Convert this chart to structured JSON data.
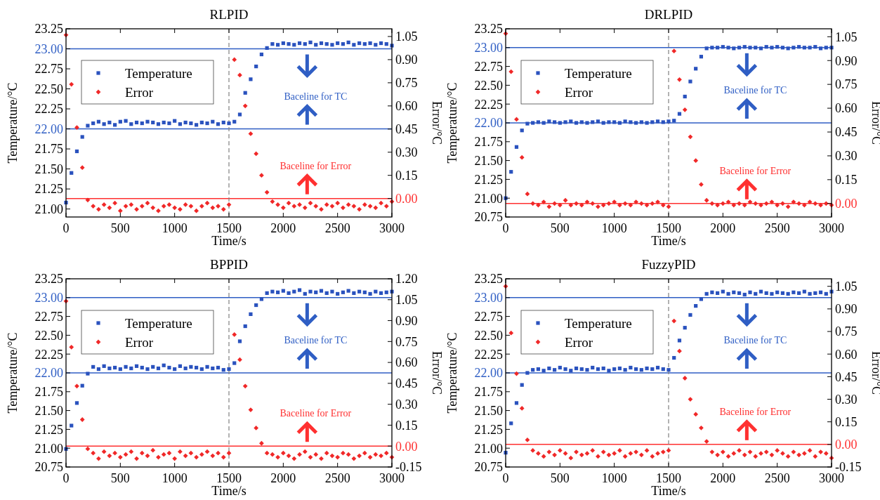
{
  "chart_data": [
    {
      "type": "scatter",
      "title": "RLPID",
      "xlabel": "Time/s",
      "ylabel": "Temperature/°C",
      "y2label": "Error/°C",
      "legend": "top left",
      "x": [
        0,
        50,
        100,
        150,
        200,
        250,
        300,
        350,
        400,
        450,
        500,
        550,
        600,
        650,
        700,
        750,
        800,
        850,
        900,
        950,
        1000,
        1050,
        1100,
        1150,
        1200,
        1250,
        1300,
        1350,
        1400,
        1450,
        1500,
        1550,
        1600,
        1650,
        1700,
        1750,
        1800,
        1850,
        1900,
        1950,
        2000,
        2050,
        2100,
        2150,
        2200,
        2250,
        2300,
        2350,
        2400,
        2450,
        2500,
        2550,
        2600,
        2650,
        2700,
        2750,
        2800,
        2850,
        2900,
        2950,
        3000
      ],
      "xlim": [
        0,
        3000
      ],
      "xticks": [
        0,
        500,
        1000,
        1500,
        2000,
        2500,
        3000
      ],
      "ylim": [
        20.9,
        23.25
      ],
      "yticks": [
        {
          "value": 21,
          "label": "21.00"
        },
        21.25,
        {
          "value": 21.5,
          "label": "21.50"
        },
        21.75,
        {
          "value": 22,
          "label": "22.00"
        },
        22.25,
        {
          "value": 22.5,
          "label": "22.50"
        },
        22.75,
        {
          "value": 23,
          "label": "23.00"
        },
        23.25
      ],
      "y2lim": [
        -0.12,
        1.1
      ],
      "y2ticks": [
        {
          "value": 0,
          "label": "0.00"
        },
        0.15,
        {
          "value": 0.3,
          "label": "0.30"
        },
        0.45,
        {
          "value": 0.6,
          "label": "0.60"
        },
        0.75,
        {
          "value": 0.9,
          "label": "0.90"
        },
        1.05
      ],
      "series": [
        {
          "name": "Temperature",
          "color": "#2a52be",
          "marker": "square",
          "values": [
            21.08,
            21.45,
            21.72,
            21.9,
            22.04,
            22.07,
            22.09,
            22.06,
            22.08,
            22.05,
            22.09,
            22.1,
            22.06,
            22.08,
            22.07,
            22.09,
            22.08,
            22.06,
            22.08,
            22.07,
            22.1,
            22.06,
            22.08,
            22.07,
            22.05,
            22.08,
            22.07,
            22.09,
            22.06,
            22.08,
            22.07,
            22.09,
            22.18,
            22.45,
            22.62,
            22.78,
            22.93,
            23.01,
            23.06,
            23.05,
            23.07,
            23.06,
            23.05,
            23.07,
            23.06,
            23.08,
            23.05,
            23.07,
            23.06,
            23.05,
            23.07,
            23.06,
            23.08,
            23.05,
            23.07,
            23.06,
            23.07,
            23.05,
            23.07,
            23.06,
            23.04
          ]
        },
        {
          "name": "Error",
          "color": "#f02828",
          "marker": "diamond",
          "axis": "y2",
          "values": [
            1.06,
            0.74,
            0.46,
            0.2,
            -0.01,
            -0.05,
            -0.07,
            -0.04,
            -0.06,
            -0.03,
            -0.08,
            -0.05,
            -0.04,
            -0.07,
            -0.05,
            -0.03,
            -0.06,
            -0.08,
            -0.05,
            -0.04,
            -0.06,
            -0.07,
            -0.04,
            -0.05,
            -0.08,
            -0.05,
            -0.03,
            -0.06,
            -0.05,
            -0.07,
            -0.04,
            0.9,
            0.8,
            0.6,
            0.42,
            0.29,
            0.15,
            0.04,
            -0.02,
            -0.04,
            -0.06,
            -0.03,
            -0.05,
            -0.04,
            -0.06,
            -0.03,
            -0.05,
            -0.07,
            -0.04,
            -0.05,
            -0.03,
            -0.06,
            -0.04,
            -0.05,
            -0.07,
            -0.04,
            -0.05,
            -0.06,
            -0.03,
            -0.05,
            -0.02
          ]
        }
      ],
      "ref_lines": [
        {
          "axis": "y",
          "value": 23,
          "color": "#2f5ec4"
        },
        {
          "axis": "y",
          "value": 22,
          "color": "#2f5ec4",
          "label": "Baceline for TC"
        },
        {
          "axis": "y2",
          "value": 0,
          "color": "#ff3030",
          "label": "Baceline for Error"
        },
        {
          "axis": "x",
          "value": 1500,
          "color": "#808080",
          "line_style": "dashed"
        }
      ]
    },
    {
      "type": "scatter",
      "title": "DRLPID",
      "xlabel": "Time/s",
      "ylabel": "Temperature/°C",
      "y2label": "Error/°C",
      "legend": "top left",
      "x": [
        0,
        50,
        100,
        150,
        200,
        250,
        300,
        350,
        400,
        450,
        500,
        550,
        600,
        650,
        700,
        750,
        800,
        850,
        900,
        950,
        1000,
        1050,
        1100,
        1150,
        1200,
        1250,
        1300,
        1350,
        1400,
        1450,
        1500,
        1550,
        1600,
        1650,
        1700,
        1750,
        1800,
        1850,
        1900,
        1950,
        2000,
        2050,
        2100,
        2150,
        2200,
        2250,
        2300,
        2350,
        2400,
        2450,
        2500,
        2550,
        2600,
        2650,
        2700,
        2750,
        2800,
        2850,
        2900,
        2950,
        3000
      ],
      "xlim": [
        0,
        3000
      ],
      "xticks": [
        0,
        500,
        1000,
        1500,
        2000,
        2500,
        3000
      ],
      "ylim": [
        20.75,
        23.25
      ],
      "yticks": [
        20.75,
        {
          "value": 21,
          "label": "21.00"
        },
        21.25,
        {
          "value": 21.5,
          "label": "21.50"
        },
        21.75,
        {
          "value": 22,
          "label": "22.00"
        },
        22.25,
        {
          "value": 22.5,
          "label": "22.50"
        },
        22.75,
        {
          "value": 23,
          "label": "23.00"
        },
        23.25
      ],
      "y2lim": [
        -0.085,
        1.1
      ],
      "y2ticks": [
        {
          "value": 0,
          "label": "0.00"
        },
        0.15,
        {
          "value": 0.3,
          "label": "0.30"
        },
        0.45,
        {
          "value": 0.6,
          "label": "0.60"
        },
        0.75,
        {
          "value": 0.9,
          "label": "0.90"
        },
        1.05
      ],
      "series": [
        {
          "name": "Temperature",
          "color": "#2a52be",
          "marker": "square",
          "values": [
            21.0,
            21.35,
            21.68,
            21.9,
            21.99,
            22.0,
            22.01,
            22.0,
            22.02,
            22.01,
            22.0,
            22.01,
            22.02,
            22.0,
            22.01,
            22.0,
            22.01,
            22.02,
            22.0,
            22.01,
            22.01,
            22.0,
            22.02,
            22.01,
            22.0,
            22.01,
            22.0,
            22.01,
            22.02,
            22.01,
            22.02,
            22.03,
            22.12,
            22.35,
            22.55,
            22.72,
            22.88,
            22.99,
            23.0,
            23.0,
            23.01,
            23.0,
            22.99,
            23.0,
            23.01,
            23.0,
            23.0,
            22.99,
            23.01,
            23.0,
            23.01,
            23.0,
            22.99,
            23.0,
            23.01,
            23.0,
            23.0,
            23.01,
            22.99,
            23.0,
            23.0
          ]
        },
        {
          "name": "Error",
          "color": "#f02828",
          "marker": "diamond",
          "axis": "y2",
          "values": [
            1.07,
            0.83,
            0.53,
            0.29,
            0.06,
            0.0,
            -0.01,
            0.01,
            -0.02,
            0.0,
            -0.01,
            0.02,
            -0.01,
            0.0,
            -0.01,
            0.01,
            0.0,
            -0.02,
            -0.01,
            0.0,
            0.01,
            -0.01,
            0.0,
            -0.01,
            0.01,
            0.0,
            -0.01,
            0.0,
            0.01,
            -0.01,
            -0.02,
            0.96,
            0.78,
            0.59,
            0.42,
            0.27,
            0.12,
            0.02,
            0.0,
            -0.01,
            0.0,
            0.01,
            -0.01,
            0.0,
            -0.01,
            0.01,
            0.0,
            -0.01,
            0.0,
            0.01,
            -0.01,
            0.0,
            -0.02,
            0.01,
            0.0,
            -0.01,
            0.01,
            0.0,
            -0.01,
            0.0,
            -0.01
          ]
        }
      ],
      "ref_lines": [
        {
          "axis": "y",
          "value": 23,
          "color": "#2f5ec4"
        },
        {
          "axis": "y",
          "value": 22,
          "color": "#2f5ec4",
          "label": "Baceline for TC"
        },
        {
          "axis": "y2",
          "value": 0,
          "color": "#ff3030",
          "label": "Baceline for Error"
        },
        {
          "axis": "x",
          "value": 1500,
          "color": "#808080",
          "line_style": "dashed"
        }
      ]
    },
    {
      "type": "scatter",
      "title": "BPPID",
      "xlabel": "Time/s",
      "ylabel": "Temperature/°C",
      "y2label": "Error/°C",
      "legend": "top left",
      "x": [
        0,
        50,
        100,
        150,
        200,
        250,
        300,
        350,
        400,
        450,
        500,
        550,
        600,
        650,
        700,
        750,
        800,
        850,
        900,
        950,
        1000,
        1050,
        1100,
        1150,
        1200,
        1250,
        1300,
        1350,
        1400,
        1450,
        1500,
        1550,
        1600,
        1650,
        1700,
        1750,
        1800,
        1850,
        1900,
        1950,
        2000,
        2050,
        2100,
        2150,
        2200,
        2250,
        2300,
        2350,
        2400,
        2450,
        2500,
        2550,
        2600,
        2650,
        2700,
        2750,
        2800,
        2850,
        2900,
        2950,
        3000
      ],
      "xlim": [
        0,
        3000
      ],
      "xticks": [
        0,
        500,
        1000,
        1500,
        2000,
        2500,
        3000
      ],
      "ylim": [
        20.75,
        23.25
      ],
      "yticks": [
        20.75,
        {
          "value": 21,
          "label": "21.00"
        },
        21.25,
        {
          "value": 21.5,
          "label": "21.50"
        },
        21.75,
        {
          "value": 22,
          "label": "22.00"
        },
        22.25,
        {
          "value": 22.5,
          "label": "22.50"
        },
        22.75,
        {
          "value": 23,
          "label": "23.00"
        },
        23.25
      ],
      "y2lim": [
        -0.15,
        1.2
      ],
      "y2ticks": [
        -0.15,
        {
          "value": 0,
          "label": "0.00"
        },
        0.15,
        {
          "value": 0.3,
          "label": "0.30"
        },
        0.45,
        {
          "value": 0.6,
          "label": "0.60"
        },
        0.75,
        {
          "value": 0.9,
          "label": "0.90"
        },
        1.05,
        {
          "value": 1.2,
          "label": "1.20"
        }
      ],
      "series": [
        {
          "name": "Temperature",
          "color": "#2a52be",
          "marker": "square",
          "values": [
            20.99,
            21.3,
            21.6,
            21.83,
            21.99,
            22.08,
            22.05,
            22.09,
            22.06,
            22.07,
            22.05,
            22.08,
            22.06,
            22.09,
            22.07,
            22.05,
            22.08,
            22.06,
            22.1,
            22.07,
            22.05,
            22.09,
            22.06,
            22.08,
            22.07,
            22.05,
            22.08,
            22.06,
            22.07,
            22.04,
            22.05,
            22.13,
            22.42,
            22.62,
            22.78,
            22.9,
            22.98,
            23.06,
            23.08,
            23.07,
            23.09,
            23.06,
            23.08,
            23.1,
            23.05,
            23.08,
            23.07,
            23.09,
            23.06,
            23.08,
            23.05,
            23.07,
            23.09,
            23.06,
            23.08,
            23.07,
            23.05,
            23.08,
            23.06,
            23.07,
            23.08
          ]
        },
        {
          "name": "Error",
          "color": "#f02828",
          "marker": "diamond",
          "axis": "y2",
          "values": [
            1.04,
            0.71,
            0.43,
            0.19,
            -0.02,
            -0.05,
            -0.09,
            -0.04,
            -0.07,
            -0.05,
            -0.08,
            -0.06,
            -0.04,
            -0.09,
            -0.05,
            -0.07,
            -0.03,
            -0.08,
            -0.06,
            -0.05,
            -0.09,
            -0.04,
            -0.07,
            -0.05,
            -0.08,
            -0.06,
            -0.04,
            -0.07,
            -0.05,
            -0.08,
            -0.05,
            0.8,
            0.62,
            0.43,
            0.26,
            0.13,
            0.02,
            -0.05,
            -0.06,
            -0.08,
            -0.05,
            -0.07,
            -0.09,
            -0.06,
            -0.04,
            -0.08,
            -0.06,
            -0.09,
            -0.05,
            -0.07,
            -0.08,
            -0.05,
            -0.06,
            -0.09,
            -0.07,
            -0.05,
            -0.08,
            -0.06,
            -0.07,
            -0.05,
            -0.08
          ]
        }
      ],
      "ref_lines": [
        {
          "axis": "y",
          "value": 23,
          "color": "#2f5ec4"
        },
        {
          "axis": "y",
          "value": 22,
          "color": "#2f5ec4",
          "label": "Baceline for TC"
        },
        {
          "axis": "y2",
          "value": 0,
          "color": "#ff3030",
          "label": "Baceline for Error"
        },
        {
          "axis": "x",
          "value": 1500,
          "color": "#808080",
          "line_style": "dashed"
        }
      ]
    },
    {
      "type": "scatter",
      "title": "FuzzyPID",
      "xlabel": "Time/s",
      "ylabel": "Temperature/°C",
      "y2label": "Error/°C",
      "legend": "top left",
      "x": [
        0,
        50,
        100,
        150,
        200,
        250,
        300,
        350,
        400,
        450,
        500,
        550,
        600,
        650,
        700,
        750,
        800,
        850,
        900,
        950,
        1000,
        1050,
        1100,
        1150,
        1200,
        1250,
        1300,
        1350,
        1400,
        1450,
        1500,
        1550,
        1600,
        1650,
        1700,
        1750,
        1800,
        1850,
        1900,
        1950,
        2000,
        2050,
        2100,
        2150,
        2200,
        2250,
        2300,
        2350,
        2400,
        2450,
        2500,
        2550,
        2600,
        2650,
        2700,
        2750,
        2800,
        2850,
        2900,
        2950,
        3000
      ],
      "xlim": [
        0,
        3000
      ],
      "xticks": [
        0,
        500,
        1000,
        1500,
        2000,
        2500,
        3000
      ],
      "ylim": [
        20.75,
        23.25
      ],
      "yticks": [
        20.75,
        {
          "value": 21,
          "label": "21.00"
        },
        21.25,
        {
          "value": 21.5,
          "label": "21.50"
        },
        21.75,
        {
          "value": 22,
          "label": "22.00"
        },
        22.25,
        {
          "value": 22.5,
          "label": "22.50"
        },
        22.75,
        {
          "value": 23,
          "label": "23.00"
        },
        23.25
      ],
      "y2lim": [
        -0.15,
        1.1
      ],
      "y2ticks": [
        -0.15,
        {
          "value": 0,
          "label": "0.00"
        },
        0.15,
        {
          "value": 0.3,
          "label": "0.30"
        },
        0.45,
        {
          "value": 0.6,
          "label": "0.60"
        },
        0.75,
        {
          "value": 0.9,
          "label": "0.90"
        },
        1.05
      ],
      "series": [
        {
          "name": "Temperature",
          "color": "#2a52be",
          "marker": "square",
          "values": [
            20.94,
            21.33,
            21.6,
            21.84,
            22.0,
            22.04,
            22.05,
            22.03,
            22.06,
            22.04,
            22.07,
            22.05,
            22.03,
            22.06,
            22.05,
            22.04,
            22.07,
            22.05,
            22.06,
            22.03,
            22.05,
            22.06,
            22.04,
            22.07,
            22.05,
            22.04,
            22.06,
            22.05,
            22.07,
            22.05,
            22.04,
            22.2,
            22.43,
            22.6,
            22.77,
            22.89,
            22.98,
            23.05,
            23.07,
            23.06,
            23.08,
            23.05,
            23.07,
            23.06,
            23.04,
            23.07,
            23.05,
            23.08,
            23.06,
            23.05,
            23.07,
            23.06,
            23.05,
            23.07,
            23.06,
            23.08,
            23.05,
            23.06,
            23.07,
            23.05,
            23.08
          ]
        },
        {
          "name": "Error",
          "color": "#f02828",
          "marker": "diamond",
          "axis": "y2",
          "values": [
            1.05,
            0.74,
            0.47,
            0.24,
            0.03,
            -0.04,
            -0.06,
            -0.08,
            -0.05,
            -0.07,
            -0.04,
            -0.06,
            -0.09,
            -0.05,
            -0.07,
            -0.06,
            -0.04,
            -0.08,
            -0.05,
            -0.07,
            -0.06,
            -0.04,
            -0.08,
            -0.06,
            -0.05,
            -0.07,
            -0.04,
            -0.08,
            -0.06,
            -0.05,
            -0.04,
            0.82,
            0.62,
            0.44,
            0.3,
            0.2,
            0.11,
            0.02,
            -0.05,
            -0.07,
            -0.05,
            -0.08,
            -0.06,
            -0.04,
            -0.07,
            -0.05,
            -0.08,
            -0.06,
            -0.05,
            -0.07,
            -0.04,
            -0.06,
            -0.08,
            -0.05,
            -0.07,
            -0.06,
            -0.04,
            -0.08,
            -0.05,
            -0.06,
            -0.09
          ]
        }
      ],
      "ref_lines": [
        {
          "axis": "y",
          "value": 23,
          "color": "#2f5ec4"
        },
        {
          "axis": "y",
          "value": 22,
          "color": "#2f5ec4",
          "label": "Baceline for TC"
        },
        {
          "axis": "y2",
          "value": 0,
          "color": "#ff3030",
          "label": "Baceline for Error"
        },
        {
          "axis": "x",
          "value": 1500,
          "color": "#808080",
          "line_style": "dashed"
        }
      ]
    }
  ]
}
